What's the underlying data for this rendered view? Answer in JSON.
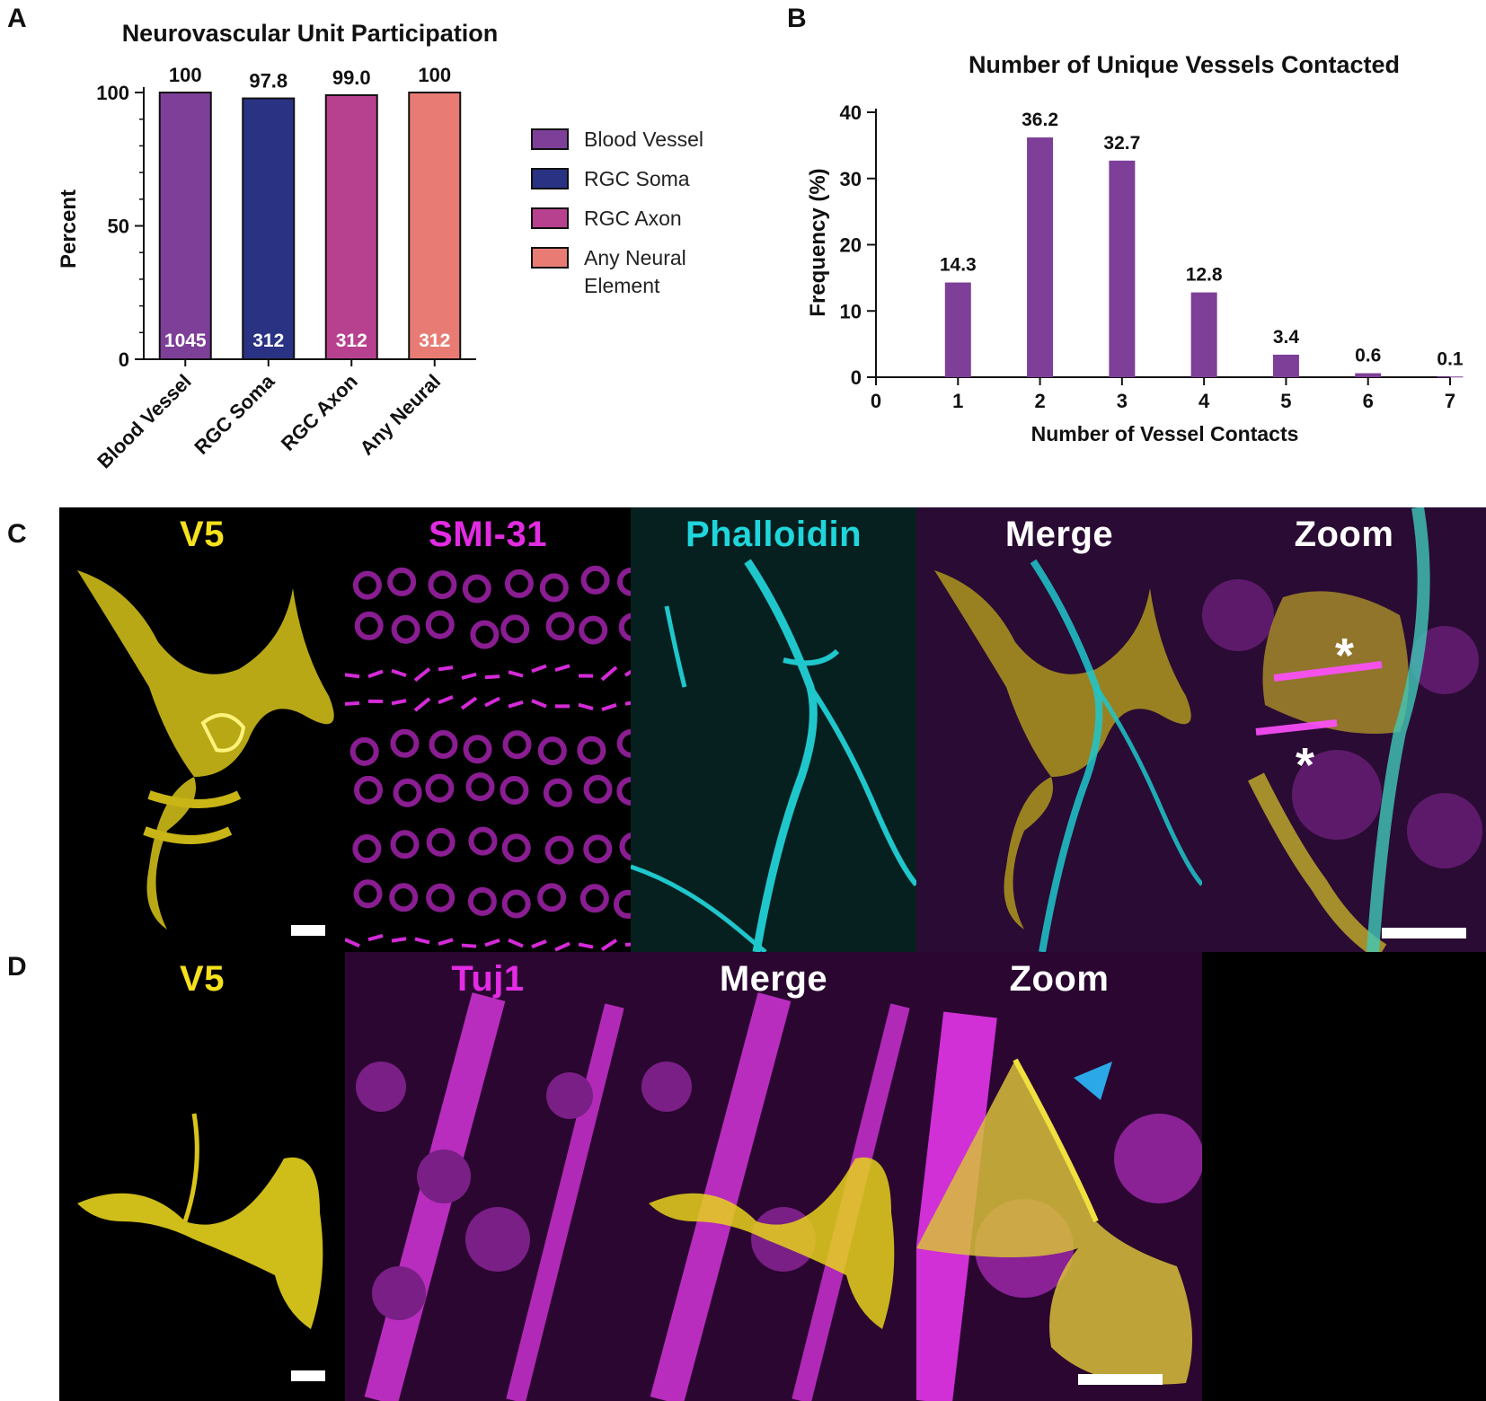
{
  "panel_letters": {
    "a": "A",
    "b": "B",
    "c": "C",
    "d": "D"
  },
  "chart_data": [
    {
      "id": "A",
      "type": "bar",
      "title": "Neurovascular Unit Participation",
      "xlabel": "",
      "ylabel": "Percent",
      "categories": [
        "Blood Vessel",
        "RGC Soma",
        "RGC Axon",
        "Any Neural"
      ],
      "values": [
        100,
        97.8,
        99.0,
        100
      ],
      "value_labels": [
        "100",
        "97.8",
        "99.0",
        "100"
      ],
      "n_labels": [
        "1045",
        "312",
        "312",
        "312"
      ],
      "colors": [
        "#7d3f98",
        "#2a3284",
        "#b8418f",
        "#e87c74"
      ],
      "ylim": [
        0,
        100
      ],
      "yticks": [
        "0",
        "50",
        "100"
      ],
      "legend": {
        "position": "right",
        "entries": [
          "Blood Vessel",
          "RGC Soma",
          "RGC Axon",
          "Any Neural Element"
        ]
      }
    },
    {
      "id": "B",
      "type": "bar",
      "title": "Number of Unique Vessels Contacted",
      "xlabel": "Number of Vessel Contacts",
      "ylabel": "Frequency (%)",
      "x": [
        1,
        2,
        3,
        4,
        5,
        6,
        7
      ],
      "values": [
        14.3,
        36.2,
        32.7,
        12.8,
        3.4,
        0.6,
        0.1
      ],
      "value_labels": [
        "14.3",
        "36.2",
        "32.7",
        "12.8",
        "3.4",
        "0.6",
        "0.1"
      ],
      "color": "#7d3f98",
      "xlim": [
        0,
        7
      ],
      "ylim": [
        0,
        40
      ],
      "xticks": [
        "0",
        "1",
        "2",
        "3",
        "4",
        "5",
        "6",
        "7"
      ],
      "yticks": [
        "0",
        "10",
        "20",
        "30",
        "40"
      ]
    }
  ],
  "micrographs": {
    "row_c": [
      {
        "label": "V5",
        "color": "#f5e11c"
      },
      {
        "label": "SMI-31",
        "color": "#e22be2"
      },
      {
        "label": "Phalloidin",
        "color": "#1fd6dc"
      },
      {
        "label": "Merge",
        "color": "#ffffff"
      },
      {
        "label": "Zoom",
        "color": "#ffffff"
      }
    ],
    "row_d": [
      {
        "label": "V5",
        "color": "#f5e11c"
      },
      {
        "label": "Tuj1",
        "color": "#e22be2"
      },
      {
        "label": "Merge",
        "color": "#ffffff"
      },
      {
        "label": "Zoom",
        "color": "#ffffff"
      }
    ],
    "asterisk": "*"
  }
}
